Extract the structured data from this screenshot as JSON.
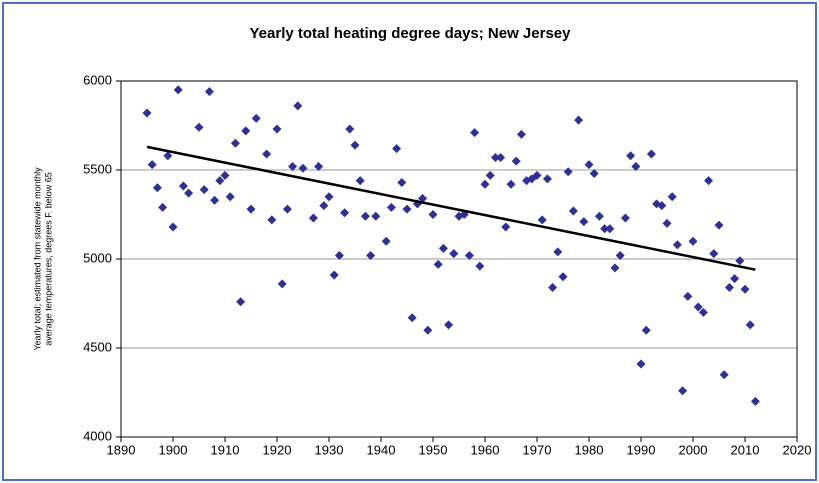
{
  "chart_data": {
    "type": "scatter",
    "title": "Yearly total heating degree days; New Jersey",
    "ylabel": [
      "Yearly total; estimated from statewide monthly",
      "average temperatures, degrees F. below 65"
    ],
    "color": "#2e3192",
    "xlim": [
      1890,
      2020
    ],
    "xticks": [
      1890,
      1900,
      1910,
      1920,
      1930,
      1940,
      1950,
      1960,
      1970,
      1980,
      1990,
      2000,
      2010,
      2020
    ],
    "ylim": [
      4000,
      6000
    ],
    "yticks": [
      4000,
      4500,
      5000,
      5500,
      6000
    ],
    "grid": true,
    "series": [
      {
        "name": "Yearly total",
        "x": [
          1895,
          1896,
          1897,
          1898,
          1899,
          1900,
          1901,
          1902,
          1903,
          1905,
          1906,
          1907,
          1908,
          1909,
          1910,
          1911,
          1912,
          1913,
          1914,
          1915,
          1916,
          1918,
          1919,
          1920,
          1921,
          1922,
          1923,
          1924,
          1925,
          1927,
          1928,
          1929,
          1930,
          1931,
          1932,
          1933,
          1934,
          1935,
          1936,
          1937,
          1938,
          1939,
          1941,
          1942,
          1943,
          1944,
          1945,
          1946,
          1947,
          1948,
          1949,
          1950,
          1951,
          1952,
          1953,
          1954,
          1955,
          1956,
          1957,
          1958,
          1959,
          1960,
          1961,
          1962,
          1963,
          1964,
          1965,
          1966,
          1967,
          1968,
          1969,
          1970,
          1971,
          1972,
          1973,
          1974,
          1975,
          1976,
          1977,
          1978,
          1979,
          1980,
          1981,
          1982,
          1983,
          1984,
          1985,
          1986,
          1987,
          1988,
          1989,
          1990,
          1991,
          1992,
          1993,
          1994,
          1995,
          1996,
          1997,
          1998,
          1999,
          2000,
          2001,
          2002,
          2003,
          2004,
          2005,
          2006,
          2007,
          2008,
          2009,
          2010,
          2011,
          2012
        ],
        "values": [
          5820,
          5530,
          5400,
          5290,
          5580,
          5180,
          5950,
          5410,
          5370,
          5740,
          5390,
          5940,
          5330,
          5440,
          5470,
          5350,
          5650,
          4760,
          5720,
          5280,
          5790,
          5590,
          5220,
          5730,
          4860,
          5280,
          5520,
          5860,
          5510,
          5230,
          5520,
          5300,
          5350,
          4910,
          5020,
          5260,
          5730,
          5640,
          5440,
          5240,
          5020,
          5240,
          5100,
          5290,
          5620,
          5430,
          5280,
          4670,
          5310,
          5340,
          4600,
          5250,
          4970,
          5060,
          4630,
          5030,
          5240,
          5250,
          5020,
          5710,
          4960,
          5420,
          5470,
          5570,
          5570,
          5180,
          5420,
          5550,
          5700,
          5440,
          5450,
          5470,
          5220,
          5450,
          4840,
          5040,
          4900,
          5490,
          5270,
          5780,
          5210,
          5530,
          5480,
          5240,
          5170,
          5170,
          4950,
          5020,
          5230,
          5580,
          5520,
          4410,
          4600,
          5590,
          5310,
          5300,
          5200,
          5350,
          5080,
          4260,
          4790,
          5100,
          4730,
          4700,
          5440,
          5030,
          5190,
          4350,
          4840,
          4890,
          4990,
          4830,
          4630,
          4200
        ]
      }
    ],
    "trendline": {
      "x": [
        1895,
        2012
      ],
      "values": [
        5630,
        4940
      ],
      "color": "#000000"
    }
  }
}
